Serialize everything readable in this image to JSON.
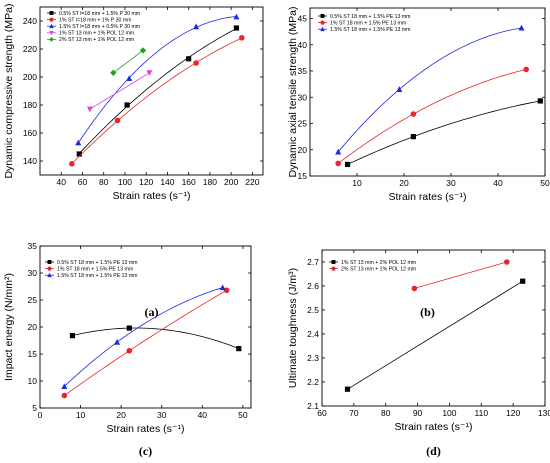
{
  "chart_data": [
    {
      "panel": "(a)",
      "type": "scatter",
      "xlabel": "Strain rates (s⁻¹)",
      "ylabel": "Dynamic compressive strength (MPa)",
      "xlim": [
        20,
        230
      ],
      "ylim": [
        130,
        250
      ],
      "xticks": [
        40,
        60,
        80,
        100,
        120,
        140,
        160,
        180,
        200,
        220
      ],
      "yticks": [
        140,
        160,
        180,
        200,
        220,
        240
      ],
      "legend_position": "top-left",
      "series": [
        {
          "name": "0.5% ST l=18 mm + 1.5% P 30 mm",
          "color": "#000000",
          "marker": "square",
          "fit": true,
          "x": [
            57,
            102,
            160,
            205
          ],
          "y": [
            145,
            180,
            213,
            235
          ]
        },
        {
          "name": "1% ST l=18 mm + 1% P 30 mm",
          "color": "#e8262a",
          "marker": "circle",
          "fit": true,
          "x": [
            50,
            93,
            167,
            210
          ],
          "y": [
            138,
            169,
            210,
            228
          ]
        },
        {
          "name": "1.5% ST l=18 mm + 0.5% P 30 mm",
          "color": "#1f2be0",
          "marker": "triangle-up",
          "fit": true,
          "x": [
            56,
            104,
            167,
            205
          ],
          "y": [
            153,
            199,
            236,
            243
          ]
        },
        {
          "name": "1% ST 13 mm + 1% POL 12 mm",
          "color": "#e23fe0",
          "marker": "triangle-down",
          "fit": true,
          "x": [
            67,
            123
          ],
          "y": [
            177,
            203
          ]
        },
        {
          "name": "2% ST 13 mm + 1% POL 12 mm",
          "color": "#22a322",
          "marker": "diamond",
          "fit": true,
          "x": [
            89,
            117
          ],
          "y": [
            203,
            219
          ]
        }
      ]
    },
    {
      "panel": "(b)",
      "type": "scatter",
      "xlabel": "Strain rates (s⁻¹)",
      "ylabel": "Dynamic axial tensile strength (MPa)",
      "xlim": [
        0,
        50
      ],
      "ylim": [
        15,
        47
      ],
      "xticks": [
        10,
        20,
        30,
        40,
        50
      ],
      "yticks": [
        15,
        20,
        25,
        30,
        35,
        40,
        45
      ],
      "legend_position": "top-left",
      "series": [
        {
          "name": "0.5% ST 18 mm + 1.5% PE 13 mm",
          "color": "#000000",
          "marker": "square",
          "fit": true,
          "x": [
            8,
            22,
            49
          ],
          "y": [
            17.2,
            22.5,
            29.3
          ]
        },
        {
          "name": "1% ST 18 mm + 1.5% PE 13 mm",
          "color": "#e8262a",
          "marker": "circle",
          "fit": true,
          "x": [
            6,
            22,
            46
          ],
          "y": [
            17.4,
            26.8,
            35.3
          ]
        },
        {
          "name": "1.5% ST 18 mm + 1.5% PE 13 mm",
          "color": "#1f2be0",
          "marker": "triangle-up",
          "fit": true,
          "x": [
            6,
            19,
            45
          ],
          "y": [
            19.6,
            31.5,
            43.2
          ]
        }
      ]
    },
    {
      "panel": "(c)",
      "type": "scatter",
      "xlabel": "Strain rates (s⁻¹)",
      "ylabel": "Impact energy (N/mm²)",
      "xlim": [
        0,
        52
      ],
      "ylim": [
        5,
        35
      ],
      "xticks": [
        0,
        10,
        20,
        30,
        40,
        50
      ],
      "yticks": [
        5,
        10,
        15,
        20,
        25,
        30,
        35
      ],
      "legend_position": "top-left",
      "series": [
        {
          "name": "0.5% ST 18 mm + 1.5% PE 13 mm",
          "color": "#000000",
          "marker": "square",
          "fit": true,
          "x": [
            8,
            22,
            49
          ],
          "y": [
            18.4,
            19.8,
            16.0
          ]
        },
        {
          "name": "1% ST 18 mm + 1.5% PE 13 mm",
          "color": "#e8262a",
          "marker": "circle",
          "fit": true,
          "x": [
            6,
            22,
            46
          ],
          "y": [
            7.3,
            15.6,
            26.8
          ]
        },
        {
          "name": "1.5% ST 18 mm + 1.5% PE 13 mm",
          "color": "#1f2be0",
          "marker": "triangle-up",
          "fit": true,
          "x": [
            6,
            19,
            45
          ],
          "y": [
            9.0,
            17.2,
            27.3
          ]
        }
      ]
    },
    {
      "panel": "(d)",
      "type": "line",
      "xlabel": "Strain rates (s⁻¹)",
      "ylabel": "Ultimate toughness (J/m³)",
      "xlim": [
        60,
        130
      ],
      "ylim": [
        2.1,
        2.75
      ],
      "xticks": [
        60,
        70,
        80,
        90,
        100,
        110,
        120,
        130
      ],
      "yticks": [
        2.1,
        2.2,
        2.3,
        2.4,
        2.5,
        2.6,
        2.7
      ],
      "legend_position": "top-left",
      "series": [
        {
          "name": "1% ST 13 mm + 2% POL 12 mm",
          "color": "#000000",
          "marker": "square",
          "fit": false,
          "x": [
            68,
            123
          ],
          "y": [
            2.17,
            2.62
          ]
        },
        {
          "name": "2% ST 13 mm + 1% POL 12 mm",
          "color": "#e8262a",
          "marker": "circle",
          "fit": false,
          "x": [
            89,
            118
          ],
          "y": [
            2.59,
            2.7
          ]
        }
      ]
    }
  ]
}
